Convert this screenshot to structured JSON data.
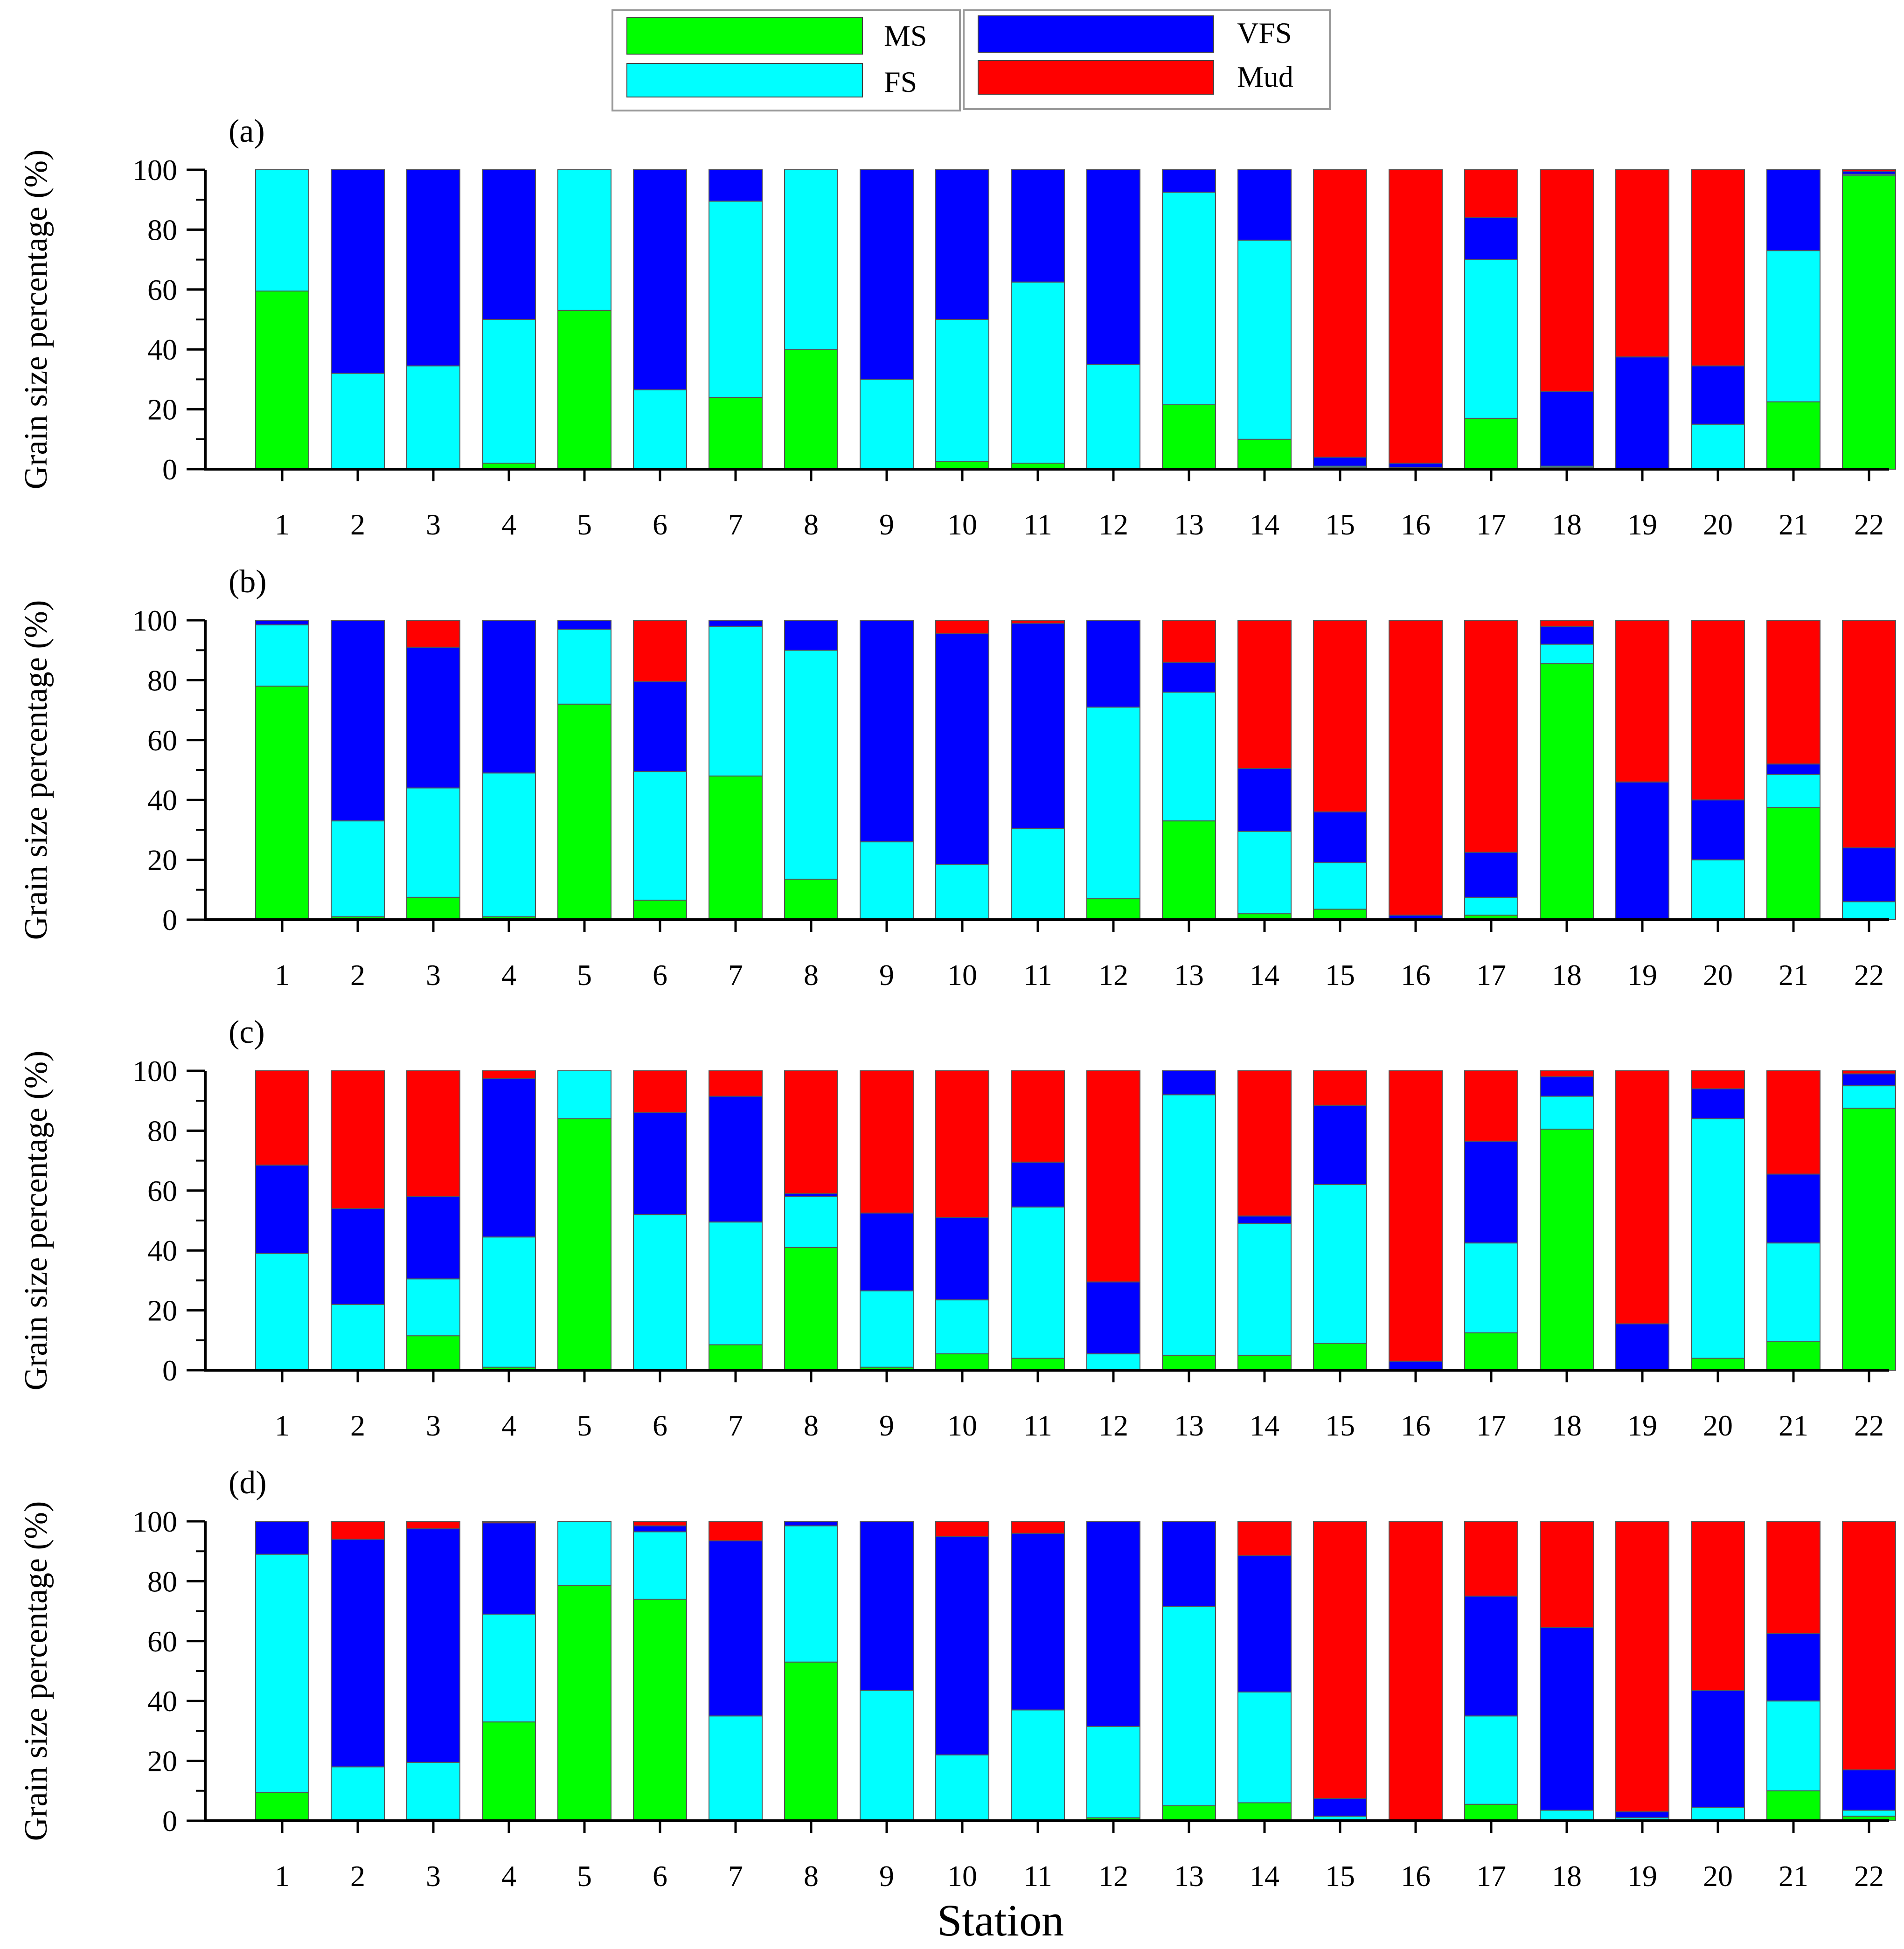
{
  "chart_data": {
    "type": "bar",
    "stacked": true,
    "categories": [
      "1",
      "2",
      "3",
      "4",
      "5",
      "6",
      "7",
      "8",
      "9",
      "10",
      "11",
      "12",
      "13",
      "14",
      "15",
      "16",
      "17",
      "18",
      "19",
      "20",
      "21",
      "22"
    ],
    "xlabel": "Station",
    "ylabel": "Grain size percentage (%)",
    "ylim": [
      0,
      100
    ],
    "yticks": [
      "0",
      "20",
      "40",
      "60",
      "80",
      "100"
    ],
    "legend": [
      {
        "name": "MS",
        "color": "#00ff00"
      },
      {
        "name": "FS",
        "color": "#00ffff"
      },
      {
        "name": "VFS",
        "color": "#0000ff"
      },
      {
        "name": "Mud",
        "color": "#ff0000"
      }
    ],
    "panels": [
      {
        "label": "(a)",
        "series": [
          {
            "name": "MS",
            "values": [
              59.5,
              0,
              0,
              2,
              53,
              0,
              24,
              40,
              0,
              2.5,
              2,
              0,
              21.5,
              10,
              0.5,
              0,
              17,
              0.5,
              0,
              0,
              22.5,
              98
            ]
          },
          {
            "name": "FS",
            "values": [
              40.5,
              32,
              34.5,
              48,
              47,
              26.5,
              65.5,
              60,
              30,
              47.5,
              60.5,
              35,
              71,
              66.5,
              0.5,
              0.5,
              53,
              0.5,
              0,
              15,
              50.5,
              0.5
            ]
          },
          {
            "name": "VFS",
            "values": [
              0,
              68,
              65.5,
              50,
              0,
              73.5,
              10.5,
              0,
              70,
              50,
              37.5,
              65,
              7.5,
              23.5,
              3,
              1.5,
              14,
              25,
              37.5,
              19.5,
              27,
              1
            ]
          },
          {
            "name": "Mud",
            "values": [
              0,
              0,
              0,
              0,
              0,
              0,
              0,
              0,
              0,
              0,
              0,
              0,
              0,
              0,
              96,
              98,
              16,
              74,
              62.5,
              65.5,
              0,
              0.5
            ]
          }
        ]
      },
      {
        "label": "(b)",
        "series": [
          {
            "name": "MS",
            "values": [
              78,
              1,
              7.5,
              1,
              72,
              6.5,
              48,
              13.5,
              0,
              0,
              0,
              7,
              33,
              2,
              3.5,
              0,
              1.5,
              85.5,
              0,
              0,
              37.5,
              0
            ]
          },
          {
            "name": "FS",
            "values": [
              20.5,
              32,
              36.5,
              48,
              25,
              43,
              50,
              76.5,
              26,
              18.5,
              30.5,
              64,
              43,
              27.5,
              15.5,
              0,
              6,
              6.5,
              0,
              20,
              11,
              6
            ]
          },
          {
            "name": "VFS",
            "values": [
              1.5,
              67,
              47,
              51,
              3,
              30,
              2,
              10,
              74,
              77,
              68.5,
              29,
              10,
              21,
              17,
              1.5,
              15,
              6,
              46,
              20,
              3.5,
              18
            ]
          },
          {
            "name": "Mud",
            "values": [
              0,
              0,
              9,
              0,
              0,
              20.5,
              0,
              0,
              0,
              4.5,
              1,
              0,
              14,
              49.5,
              64,
              98.5,
              77.5,
              2,
              54,
              60,
              48,
              76
            ]
          }
        ]
      },
      {
        "label": "(c)",
        "series": [
          {
            "name": "MS",
            "values": [
              0,
              0,
              11.5,
              1,
              84,
              0,
              8.5,
              41,
              1,
              5.5,
              4,
              0,
              5,
              5,
              9,
              0,
              12.5,
              80.5,
              0,
              4,
              9.5,
              87.5
            ]
          },
          {
            "name": "FS",
            "values": [
              39,
              22,
              19,
              43.5,
              16,
              52,
              41,
              17,
              25.5,
              18,
              50.5,
              5.5,
              87,
              44,
              53,
              0,
              30,
              11,
              0,
              80,
              33,
              7.5
            ]
          },
          {
            "name": "VFS",
            "values": [
              29.5,
              32,
              27.5,
              53,
              0,
              34,
              42,
              1,
              26,
              27.5,
              15,
              24,
              8,
              2.5,
              26.5,
              3,
              34,
              6.5,
              15.5,
              10,
              23,
              4
            ]
          },
          {
            "name": "Mud",
            "values": [
              31.5,
              46,
              42,
              2.5,
              0,
              14,
              8.5,
              41,
              47.5,
              49,
              30.5,
              70.5,
              0,
              48.5,
              11.5,
              97,
              23.5,
              2,
              84.5,
              6,
              34.5,
              1
            ]
          }
        ]
      },
      {
        "label": "(d)",
        "series": [
          {
            "name": "MS",
            "values": [
              9.5,
              0,
              0.5,
              33,
              78.5,
              74,
              0,
              53,
              0,
              0,
              0,
              1,
              5,
              6,
              0,
              0,
              5.5,
              0,
              0,
              0,
              10,
              1.5
            ]
          },
          {
            "name": "FS",
            "values": [
              79.5,
              18,
              19,
              36,
              21.5,
              22.5,
              35,
              45.5,
              43.5,
              22,
              37,
              30.5,
              66.5,
              37,
              1.5,
              0,
              29.5,
              3.5,
              1,
              4.5,
              30,
              2
            ]
          },
          {
            "name": "VFS",
            "values": [
              11,
              76,
              78,
              30.5,
              0,
              2,
              58.5,
              1.5,
              56.5,
              73,
              59,
              68.5,
              28.5,
              45.5,
              6,
              0,
              40,
              61,
              2,
              39,
              22.5,
              13.5
            ]
          },
          {
            "name": "Mud",
            "values": [
              0,
              6,
              2.5,
              0.5,
              0,
              1.5,
              6.5,
              0,
              0,
              5,
              4,
              0,
              0,
              11.5,
              92.5,
              100,
              25,
              35.5,
              97,
              56.5,
              37.5,
              83
            ]
          }
        ]
      }
    ]
  }
}
